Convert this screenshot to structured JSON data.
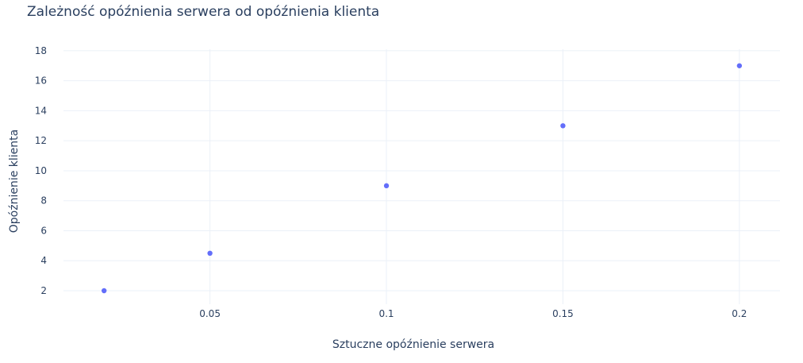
{
  "chart_data": {
    "type": "scatter",
    "title": "Zależność opóźnienia serwera od opóźnienia klienta",
    "xlabel": "Sztuczne opóźnienie serwera",
    "ylabel": "Opóźnienie klienta",
    "x": [
      0.02,
      0.05,
      0.1,
      0.15,
      0.2
    ],
    "y": [
      2,
      4.5,
      9,
      13,
      17
    ],
    "xlim": [
      0.0085,
      0.2115
    ],
    "ylim": [
      1.1,
      18.1
    ],
    "x_ticks": [
      0.05,
      0.1,
      0.15,
      0.2
    ],
    "x_tick_labels": [
      "0.05",
      "0.1",
      "0.15",
      "0.2"
    ],
    "y_ticks": [
      2,
      4,
      6,
      8,
      10,
      12,
      14,
      16,
      18
    ],
    "y_tick_labels": [
      "2",
      "4",
      "6",
      "8",
      "10",
      "12",
      "14",
      "16",
      "18"
    ],
    "grid": true,
    "marker_color": "#636efa"
  }
}
